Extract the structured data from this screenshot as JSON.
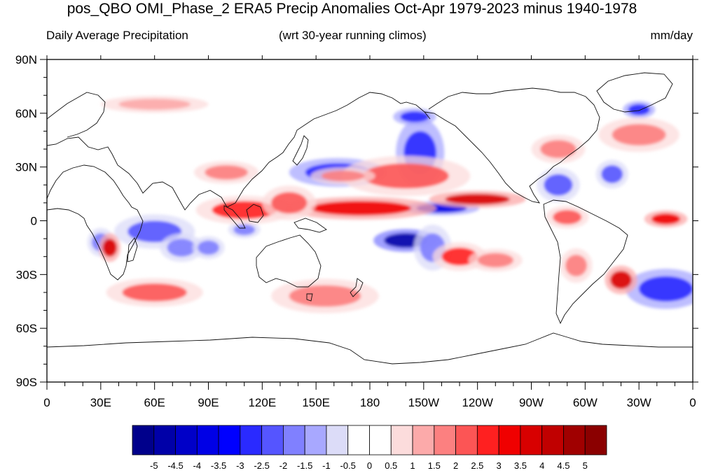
{
  "title": "pos_QBO OMI_Phase_2 ERA5 Precip Anomalies Oct-Apr 1979-2023 minus 1940-1978",
  "subtitle_left": "Daily Average Precipitation",
  "subtitle_center": "(wrt 30-year running climos)",
  "subtitle_right": "mm/day",
  "map": {
    "projection": "cylindrical-equidistant",
    "lon_range": [
      0,
      360
    ],
    "lat_range": [
      -90,
      90
    ],
    "x_ticks": [
      {
        "lon": 0,
        "label": "0"
      },
      {
        "lon": 30,
        "label": "30E"
      },
      {
        "lon": 60,
        "label": "60E"
      },
      {
        "lon": 90,
        "label": "90E"
      },
      {
        "lon": 120,
        "label": "120E"
      },
      {
        "lon": 150,
        "label": "150E"
      },
      {
        "lon": 180,
        "label": "180"
      },
      {
        "lon": 210,
        "label": "150W"
      },
      {
        "lon": 240,
        "label": "120W"
      },
      {
        "lon": 270,
        "label": "90W"
      },
      {
        "lon": 300,
        "label": "60W"
      },
      {
        "lon": 330,
        "label": "30W"
      },
      {
        "lon": 360,
        "label": "0"
      }
    ],
    "y_ticks": [
      {
        "lat": 90,
        "label": "90N"
      },
      {
        "lat": 60,
        "label": "60N"
      },
      {
        "lat": 30,
        "label": "30N"
      },
      {
        "lat": 0,
        "label": "0"
      },
      {
        "lat": -30,
        "label": "30S"
      },
      {
        "lat": -60,
        "label": "60S"
      },
      {
        "lat": -90,
        "label": "90S"
      }
    ],
    "anomaly_regions": [
      {
        "lon": 162,
        "lat": 27,
        "rlon": 18,
        "rlat": 5,
        "level": -3
      },
      {
        "lon": 208,
        "lat": 38,
        "rlon": 9,
        "rlat": 12,
        "level": -3
      },
      {
        "lon": 200,
        "lat": -11,
        "rlon": 12,
        "rlat": 4,
        "level": -5
      },
      {
        "lon": 220,
        "lat": 7,
        "rlon": 14,
        "rlat": 2.5,
        "level": -4
      },
      {
        "lon": 285,
        "lat": 20,
        "rlon": 8,
        "rlat": 6,
        "level": -2.5
      },
      {
        "lon": 315,
        "lat": 26,
        "rlon": 6,
        "rlat": 5,
        "level": -2.5
      },
      {
        "lon": 345,
        "lat": -38,
        "rlon": 15,
        "rlat": 7,
        "level": -3
      },
      {
        "lon": 60,
        "lat": -6,
        "rlon": 15,
        "rlat": 6,
        "level": -2.5
      },
      {
        "lon": 75,
        "lat": -15,
        "rlon": 8,
        "rlat": 5,
        "level": -2
      },
      {
        "lon": 90,
        "lat": -15,
        "rlon": 6,
        "rlat": 4,
        "level": -2
      },
      {
        "lon": 30,
        "lat": -12,
        "rlon": 5,
        "rlat": 5,
        "level": -2
      },
      {
        "lon": 110,
        "lat": -5,
        "rlon": 6,
        "rlat": 3,
        "level": -2
      },
      {
        "lon": 215,
        "lat": -15,
        "rlon": 7,
        "rlat": 8,
        "level": -2
      },
      {
        "lon": 205,
        "lat": 58,
        "rlon": 8,
        "rlat": 3,
        "level": -3
      },
      {
        "lon": 330,
        "lat": 62,
        "rlon": 6,
        "rlat": 3,
        "level": -3
      },
      {
        "lon": 200,
        "lat": 25,
        "rlon": 24,
        "rlat": 7,
        "level": 2
      },
      {
        "lon": 240,
        "lat": 12,
        "rlon": 18,
        "rlat": 3,
        "level": 3.5
      },
      {
        "lon": 175,
        "lat": 7,
        "rlon": 28,
        "rlat": 4,
        "level": 3
      },
      {
        "lon": 165,
        "lat": 25,
        "rlon": 12,
        "rlat": 3,
        "level": 1.5
      },
      {
        "lon": 110,
        "lat": 6,
        "rlon": 18,
        "rlat": 5,
        "level": 2.5
      },
      {
        "lon": 135,
        "lat": 10,
        "rlon": 10,
        "rlat": 6,
        "level": 2
      },
      {
        "lon": 230,
        "lat": -20,
        "rlon": 10,
        "rlat": 5,
        "level": 2.5
      },
      {
        "lon": 250,
        "lat": -22,
        "rlon": 10,
        "rlat": 4,
        "level": 1.5
      },
      {
        "lon": 60,
        "lat": -40,
        "rlon": 18,
        "rlat": 5,
        "level": 2
      },
      {
        "lon": 35,
        "lat": -15,
        "rlon": 4,
        "rlat": 5,
        "level": 3.5
      },
      {
        "lon": 320,
        "lat": -33,
        "rlon": 6,
        "rlat": 5,
        "level": 3.5
      },
      {
        "lon": 295,
        "lat": -25,
        "rlon": 6,
        "rlat": 6,
        "level": 1.5
      },
      {
        "lon": 345,
        "lat": 1,
        "rlon": 8,
        "rlat": 3,
        "level": 3
      },
      {
        "lon": 290,
        "lat": 2,
        "rlon": 8,
        "rlat": 4,
        "level": 2
      },
      {
        "lon": 285,
        "lat": 40,
        "rlon": 10,
        "rlat": 5,
        "level": 1.5
      },
      {
        "lon": 330,
        "lat": 48,
        "rlon": 15,
        "rlat": 6,
        "level": 1.5
      },
      {
        "lon": 155,
        "lat": -42,
        "rlon": 20,
        "rlat": 6,
        "level": 1.5
      },
      {
        "lon": 100,
        "lat": 27,
        "rlon": 12,
        "rlat": 4,
        "level": 1.5
      },
      {
        "lon": 60,
        "lat": 65,
        "rlon": 20,
        "rlat": 3,
        "level": 1
      }
    ]
  },
  "colorbar": {
    "colors": [
      "#00008b",
      "#0000a8",
      "#0000c8",
      "#0000e6",
      "#0000ff",
      "#2a2aff",
      "#5555ff",
      "#8080ff",
      "#a8a8ff",
      "#dcdcf8",
      "#ffffff",
      "#ffffff",
      "#fcdcdc",
      "#fcaaaa",
      "#fc8080",
      "#fc5555",
      "#ff2020",
      "#f00000",
      "#d80000",
      "#c00000",
      "#a00000",
      "#8b0000"
    ],
    "labels": [
      "-5",
      "-4.5",
      "-4",
      "-3.5",
      "-3",
      "-2.5",
      "-2",
      "-1.5",
      "-1",
      "-0.5",
      "0",
      "0.5",
      "1",
      "1.5",
      "2",
      "2.5",
      "3",
      "3.5",
      "4",
      "4.5",
      "5"
    ]
  }
}
